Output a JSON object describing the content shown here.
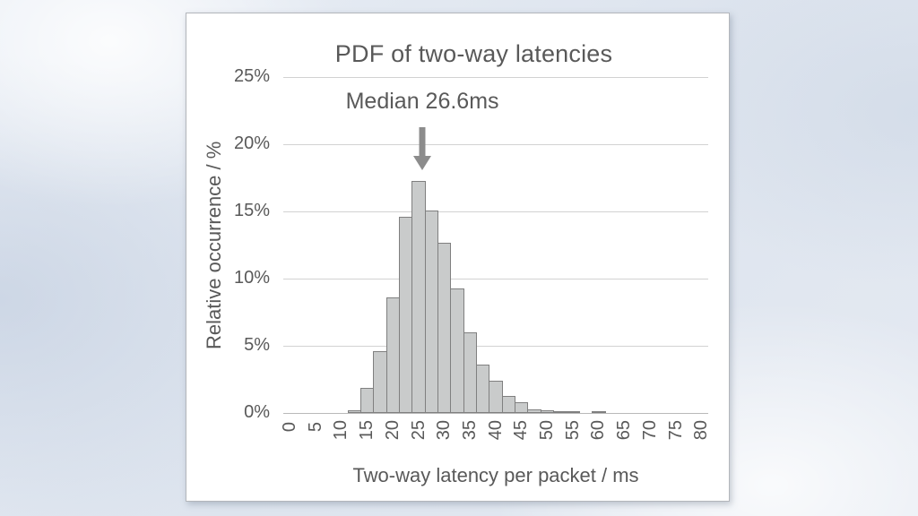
{
  "colors": {
    "text": "#595959",
    "bar_fill": "#c9cbcb",
    "bar_border": "#7f7f7f",
    "grid": "#d2d2d2",
    "axis": "#b9b9b9",
    "arrow": "#8c8c8c",
    "card_bg": "#ffffff",
    "card_border": "#b3b6bb"
  },
  "chart_data": {
    "type": "bar",
    "subtype": "histogram",
    "title": "PDF of two-way latencies",
    "xlabel": "Two-way latency per packet / ms",
    "ylabel": "Relative occurrence / %",
    "xlim": [
      0,
      80
    ],
    "ylim_pct": [
      0,
      25
    ],
    "x_ticks": [
      0,
      5,
      10,
      15,
      20,
      25,
      30,
      35,
      40,
      45,
      50,
      55,
      60,
      65,
      70,
      75,
      80
    ],
    "y_ticks_pct": [
      0,
      5,
      10,
      15,
      20,
      25
    ],
    "y_tick_suffix": "%",
    "grid": "horizontal",
    "legend": false,
    "bin_width_ms": 2.5,
    "bins": [
      {
        "start_ms": 11.25,
        "pct": 0.2
      },
      {
        "start_ms": 13.75,
        "pct": 1.9
      },
      {
        "start_ms": 16.25,
        "pct": 4.6
      },
      {
        "start_ms": 18.75,
        "pct": 8.6
      },
      {
        "start_ms": 21.25,
        "pct": 14.6
      },
      {
        "start_ms": 23.75,
        "pct": 17.3
      },
      {
        "start_ms": 26.25,
        "pct": 15.1
      },
      {
        "start_ms": 28.75,
        "pct": 12.7
      },
      {
        "start_ms": 31.25,
        "pct": 9.3
      },
      {
        "start_ms": 33.75,
        "pct": 6.0
      },
      {
        "start_ms": 36.25,
        "pct": 3.6
      },
      {
        "start_ms": 38.75,
        "pct": 2.4
      },
      {
        "start_ms": 41.25,
        "pct": 1.3
      },
      {
        "start_ms": 43.75,
        "pct": 0.8
      },
      {
        "start_ms": 46.25,
        "pct": 0.3
      },
      {
        "start_ms": 48.75,
        "pct": 0.2
      },
      {
        "start_ms": 51.25,
        "pct": 0.1
      },
      {
        "start_ms": 53.75,
        "pct": 0.05
      },
      {
        "start_ms": 56.25,
        "pct": 0
      },
      {
        "start_ms": 58.75,
        "pct": 0.15
      }
    ],
    "annotation": {
      "text": "Median 26.6ms",
      "arrow_x_ms": 25.8,
      "median_ms": 26.6
    }
  }
}
